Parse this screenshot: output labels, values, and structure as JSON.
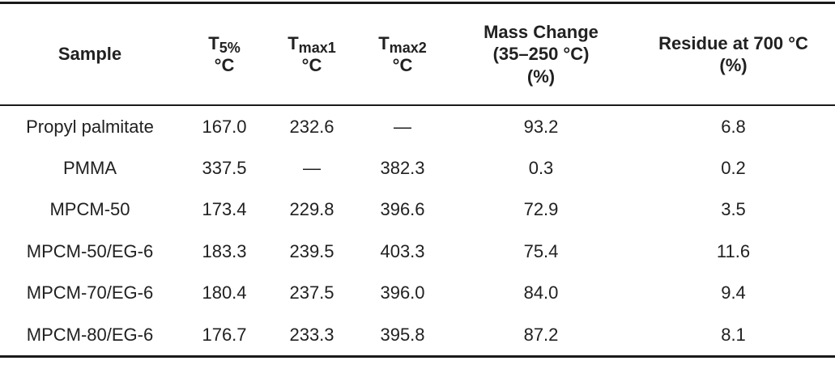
{
  "page": {
    "background": "#ffffff",
    "text_color": "#212121",
    "rule_color": "#1a1a1a"
  },
  "table": {
    "header": {
      "sample": "Sample",
      "t5_base": "T",
      "t5_sub": "5%",
      "t5_unit": "°C",
      "tmax1_base": "T",
      "tmax1_sub": "max1",
      "tmax1_unit": "°C",
      "tmax2_base": "T",
      "tmax2_sub": "max2",
      "tmax2_unit": "°C",
      "mass_change_line1": "Mass Change",
      "mass_change_line2": "(35–250 °C)",
      "mass_change_line3": "(%)",
      "residue_line1": "Residue at 700 °C",
      "residue_line2": "(%)"
    },
    "rows": [
      {
        "sample": "Propyl palmitate",
        "t5": "167.0",
        "tmax1": "232.6",
        "tmax2": "—",
        "mass_change": "93.2",
        "residue": "6.8"
      },
      {
        "sample": "PMMA",
        "t5": "337.5",
        "tmax1": "—",
        "tmax2": "382.3",
        "mass_change": "0.3",
        "residue": "0.2"
      },
      {
        "sample": "MPCM-50",
        "t5": "173.4",
        "tmax1": "229.8",
        "tmax2": "396.6",
        "mass_change": "72.9",
        "residue": "3.5"
      },
      {
        "sample": "MPCM-50/EG-6",
        "t5": "183.3",
        "tmax1": "239.5",
        "tmax2": "403.3",
        "mass_change": "75.4",
        "residue": "11.6"
      },
      {
        "sample": "MPCM-70/EG-6",
        "t5": "180.4",
        "tmax1": "237.5",
        "tmax2": "396.0",
        "mass_change": "84.0",
        "residue": "9.4"
      },
      {
        "sample": "MPCM-80/EG-6",
        "t5": "176.7",
        "tmax1": "233.3",
        "tmax2": "395.8",
        "mass_change": "87.2",
        "residue": "8.1"
      }
    ]
  }
}
